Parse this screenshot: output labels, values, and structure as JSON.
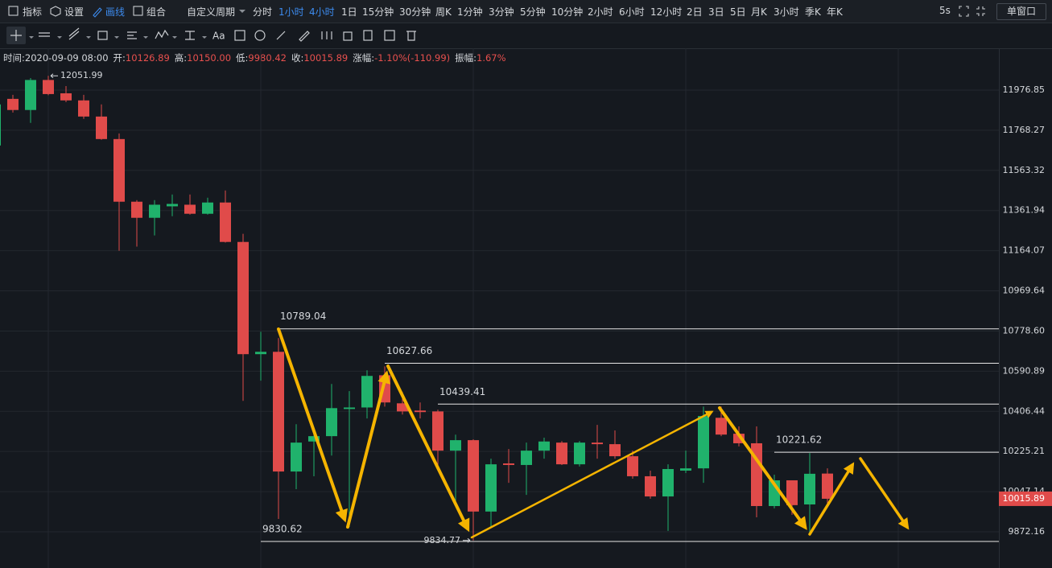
{
  "toolbar": {
    "tools": [
      "指标",
      "设置",
      "画线",
      "组合"
    ],
    "periods": [
      "自定义周期",
      "分时",
      "1小时",
      "4小时",
      "1日",
      "15分钟",
      "30分钟",
      "周K",
      "1分钟",
      "3分钟",
      "5分钟",
      "10分钟",
      "2小时",
      "6小时",
      "12小时",
      "2日",
      "3日",
      "5日",
      "月K",
      "3小时",
      "季K",
      "年K"
    ],
    "refresh": "5s",
    "window": "单窗口",
    "text_tool": "Aa"
  },
  "info": [
    {
      "label": "时间:",
      "value": "2020-09-09 08:00"
    },
    {
      "label": "开:",
      "value": "10126.89"
    },
    {
      "label": "高:",
      "value": "10150.00"
    },
    {
      "label": "低:",
      "value": "9980.42"
    },
    {
      "label": "收:",
      "value": "10015.89"
    },
    {
      "label": "涨幅:",
      "value": "-1.10%(-110.99)"
    },
    {
      "label": "振幅:",
      "value": "1.67%"
    }
  ],
  "chart_data": {
    "type": "candlestick",
    "log_scale": true,
    "grid": true,
    "up_color": "#20b26c",
    "down_color": "#e04b4a",
    "open": [
      11690,
      11931,
      11873,
      12030,
      11960,
      11923,
      11839,
      11723,
      11406,
      11326,
      11383,
      11391,
      11346,
      11402,
      11207,
      10670,
      10681,
      10136,
      10270,
      10294,
      10417,
      10424,
      10572,
      10443,
      10410,
      10406,
      10229,
      10276,
      9960,
      10172,
      10165,
      10229,
      10265,
      10168,
      10265,
      10258,
      10204,
      10115,
      10026,
      10140,
      10150,
      10377,
      10305,
      10262,
      9984,
      10097,
      9991,
      10126.89
    ],
    "high": [
      11943,
      11952,
      12040,
      12051.99,
      11998,
      11952,
      11902,
      11752,
      11414,
      11414,
      11442,
      11442,
      11426,
      11462,
      11247,
      10775,
      10745,
      10348,
      10330,
      10532,
      10499,
      10595,
      10613,
      10495,
      10447,
      10414,
      10301,
      10280,
      10193,
      10236,
      10265,
      10287,
      10272,
      10272,
      10345,
      10320,
      10229,
      10140,
      10168,
      10229,
      10428,
      10428,
      10338,
      10338,
      10122,
      10097,
      10218,
      10150
    ],
    "low": [
      11682,
      11860,
      11806,
      11950,
      11914,
      11827,
      11719,
      11164,
      11184,
      11239,
      11334,
      11342,
      11342,
      11204,
      10454,
      10547,
      9928,
      10058,
      10115,
      10207,
      9893,
      10374,
      10428,
      10392,
      10374,
      10158,
      9998,
      9834.77,
      9893,
      10086,
      10033,
      10193,
      10165,
      10158,
      10193,
      10193,
      10104,
      10016,
      9876,
      10129,
      10086,
      10294,
      10248,
      9935,
      9974,
      9946,
      9862,
      9980.42
    ],
    "close": [
      11902,
      11873,
      12030,
      11956,
      11923,
      11839,
      11723,
      11406,
      11326,
      11391,
      11395,
      11346,
      11402,
      11207,
      10670,
      10681,
      10136,
      10265,
      10294,
      10421,
      10424,
      10569,
      10447,
      10406,
      10403,
      10229,
      10276,
      9960,
      10168,
      10165,
      10229,
      10270,
      10168,
      10265,
      10258,
      10204,
      10115,
      10026,
      10147,
      10150,
      10385,
      10301,
      10262,
      9984,
      10097,
      9988,
      10126,
      10015.89
    ],
    "ylim": [
      9717,
      12198
    ],
    "yticks": [
      11976.85,
      11768.27,
      11563.32,
      11361.94,
      11164.07,
      10969.64,
      {
        "value": 10778.6,
        "label": "10778.60"
      },
      10590.89,
      10406.44,
      10225.21,
      10047.14,
      9872.16
    ],
    "price_lines": [
      10789.04,
      10627.66,
      10439.41,
      10221.62,
      9830.62
    ]
  }
}
